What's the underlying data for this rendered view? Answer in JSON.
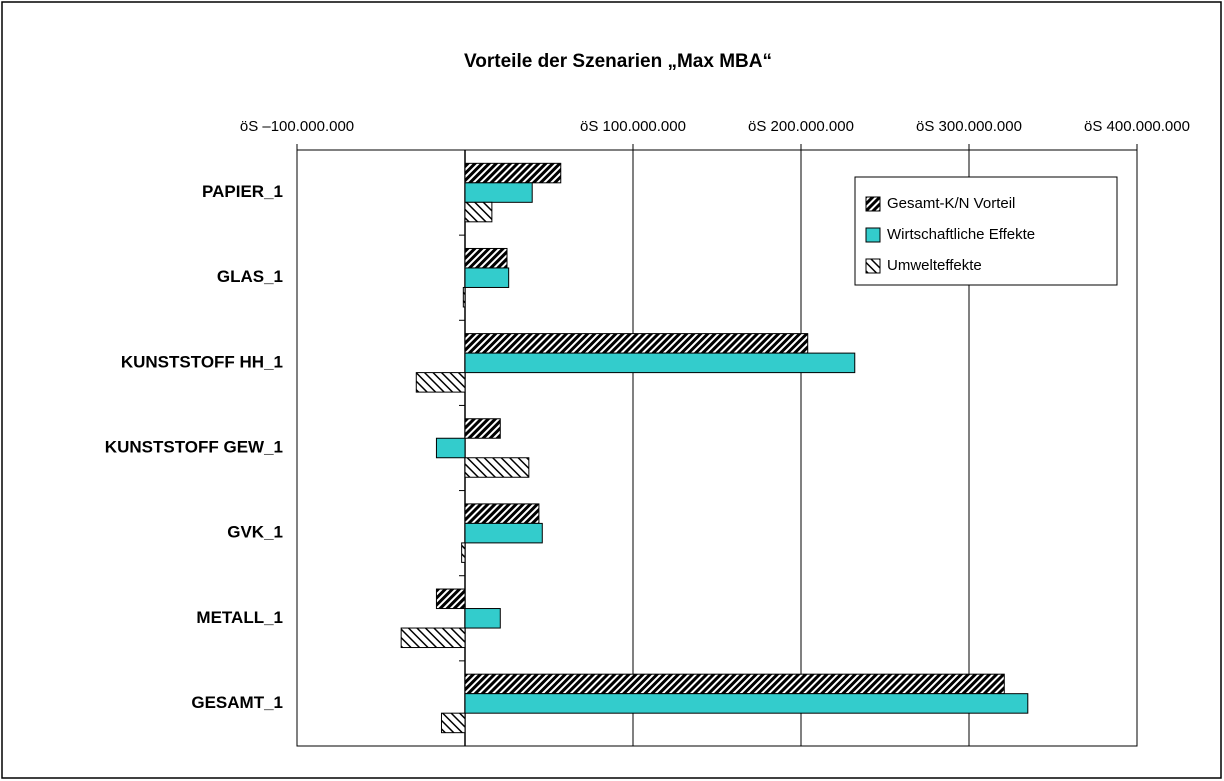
{
  "chart_data": {
    "type": "bar",
    "orientation": "horizontal",
    "title": "Vorteile der Szenarien „Max MBA“",
    "categories": [
      "PAPIER_1",
      "GLAS_1",
      "KUNSTSTOFF HH_1",
      "KUNSTSTOFF GEW_1",
      "GVK_1",
      "METALL_1",
      "GESAMT_1"
    ],
    "series": [
      {
        "name": "Gesamt-K/N Vorteil",
        "color": "#000000",
        "pattern": "hatch-dense",
        "values": [
          57000000,
          25000000,
          204000000,
          21000000,
          44000000,
          -17000000,
          321000000
        ]
      },
      {
        "name": "Wirtschaftliche Effekte",
        "color": "#33cccc",
        "pattern": "none",
        "values": [
          40000000,
          26000000,
          232000000,
          -17000000,
          46000000,
          21000000,
          335000000
        ]
      },
      {
        "name": "Umwelteffekte",
        "color": "#000000",
        "pattern": "hatch-back",
        "values": [
          16000000,
          -1000000,
          -29000000,
          38000000,
          -2000000,
          -38000000,
          -14000000
        ]
      }
    ],
    "xlim": [
      -100000000,
      400000000
    ],
    "xticks": [
      {
        "value": -100000000,
        "label": "öS –100.000.000"
      },
      {
        "value": 100000000,
        "label": "öS 100.000.000"
      },
      {
        "value": 200000000,
        "label": "öS 200.000.000"
      },
      {
        "value": 300000000,
        "label": "öS 300.000.000"
      },
      {
        "value": 400000000,
        "label": "öS 400.000.000"
      }
    ],
    "grid": true,
    "legend": "upper right"
  }
}
